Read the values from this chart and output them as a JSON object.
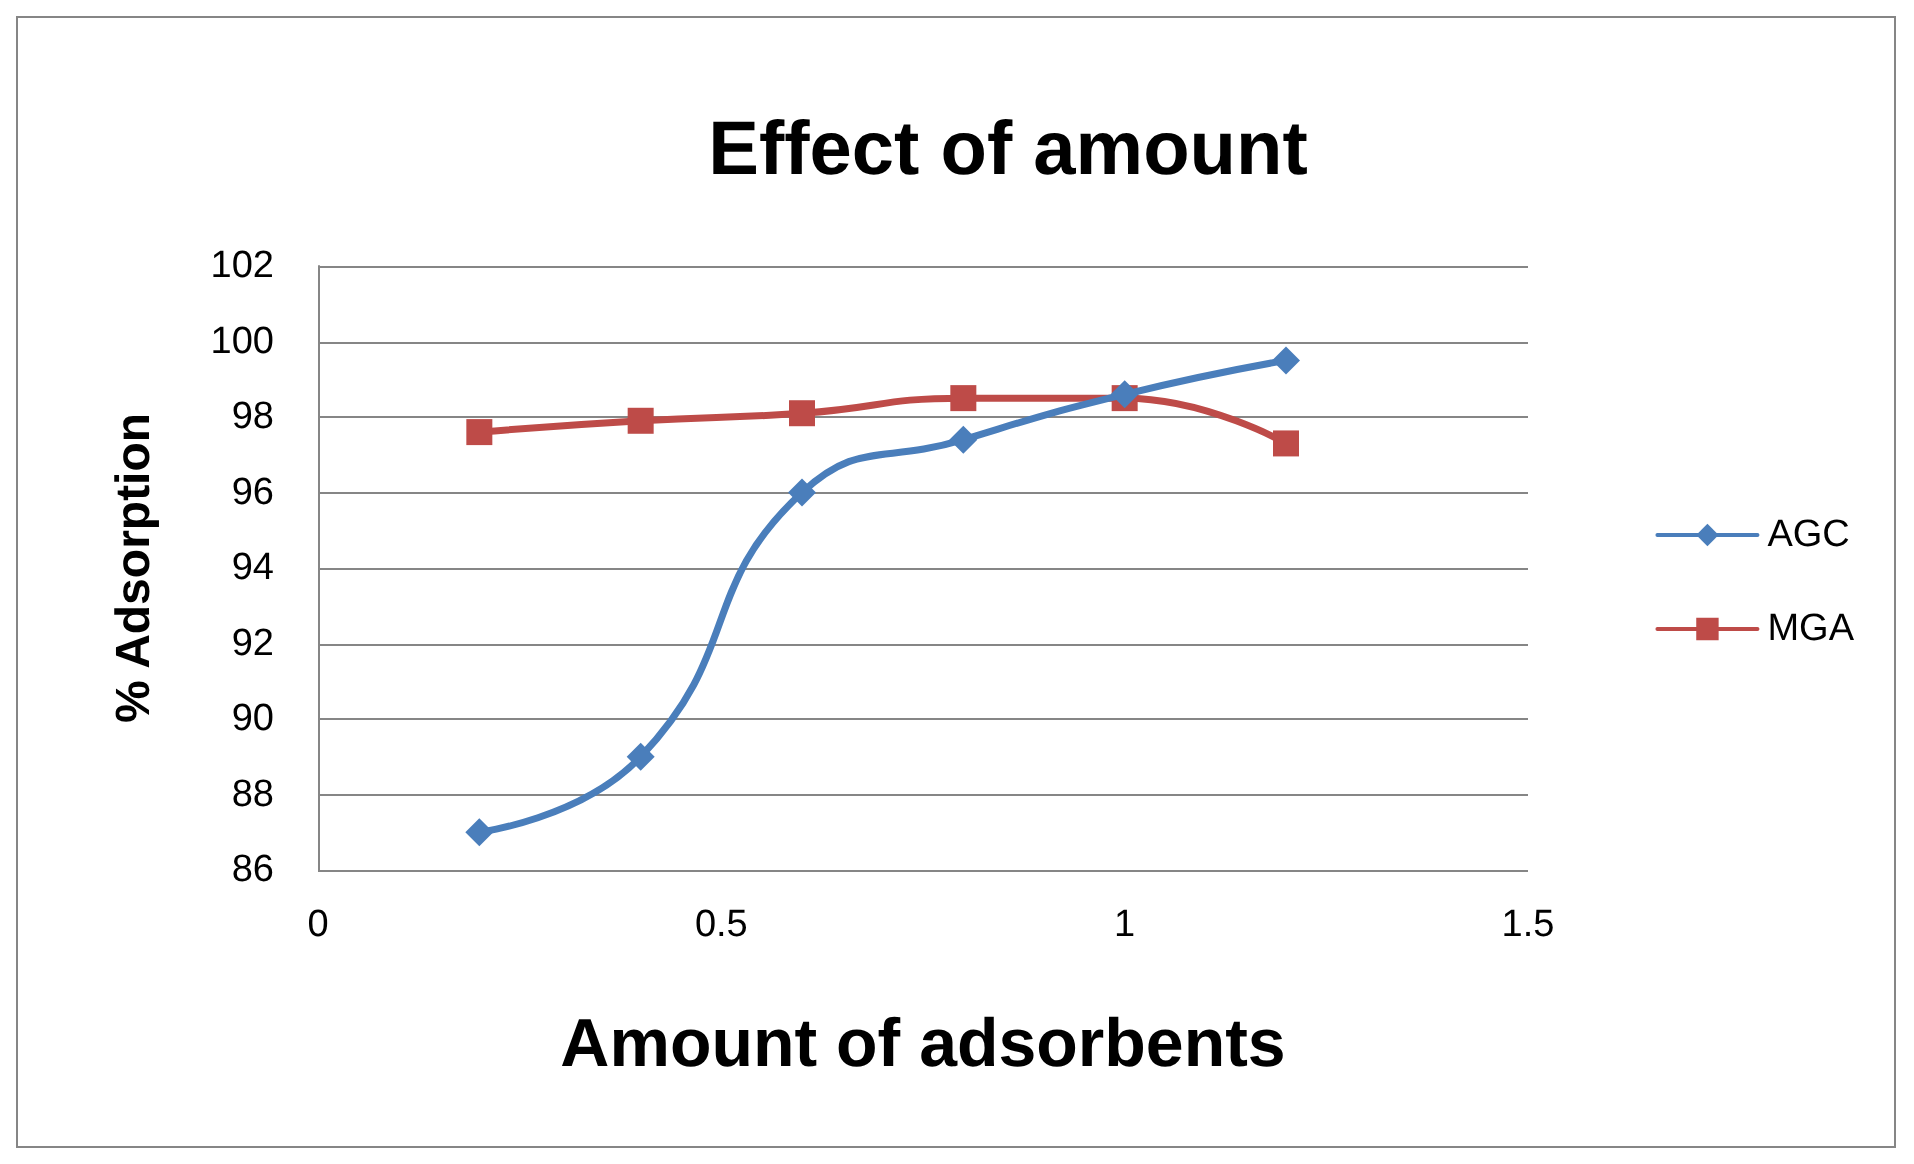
{
  "chart_data": {
    "type": "line",
    "title": "Effect of amount",
    "xlabel": "Amount of adsorbents",
    "ylabel": "% Adsorption",
    "x": [
      0.2,
      0.4,
      0.6,
      0.8,
      1.0,
      1.2
    ],
    "series": [
      {
        "name": "AGC",
        "color": "#4a7ebb",
        "marker": "diamond",
        "values": [
          87,
          89,
          96,
          97.4,
          98.6,
          99.5
        ]
      },
      {
        "name": "MGA",
        "color": "#be4b48",
        "marker": "square",
        "values": [
          97.6,
          97.9,
          98.1,
          98.5,
          98.5,
          97.3
        ]
      }
    ],
    "xlim": [
      0,
      1.5
    ],
    "xticks": [
      0,
      0.5,
      1,
      1.5
    ],
    "ylim": [
      86,
      102
    ],
    "yticks": [
      86,
      88,
      90,
      92,
      94,
      96,
      98,
      100,
      102
    ],
    "grid": "y",
    "legend": "right",
    "line_style": "solid"
  }
}
